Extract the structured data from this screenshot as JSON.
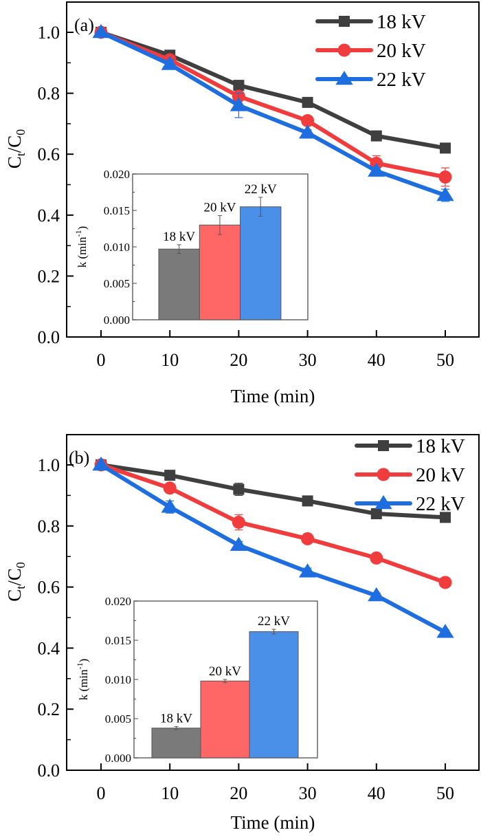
{
  "colors": {
    "s18": "#3f3f3f",
    "s20": "#f03c3c",
    "s22": "#1f6ee0",
    "bar18": "#7a7a7a",
    "bar20": "#ff6666",
    "bar22": "#4a8fe8"
  },
  "chart_data": [
    {
      "panel": "(a)",
      "type": "line",
      "xlabel": "Time (min)",
      "ylabel": "Ct/C0",
      "xlim": [
        -5,
        55
      ],
      "ylim": [
        0.0,
        1.1
      ],
      "xticks": [
        0,
        10,
        20,
        30,
        40,
        50
      ],
      "xtick_labels": [
        "0",
        "10",
        "20",
        "30",
        "40",
        "50"
      ],
      "yticks": [
        0.0,
        0.2,
        0.4,
        0.6,
        0.8,
        1.0
      ],
      "ytick_labels": [
        "0.0",
        "0.2",
        "0.4",
        "0.6",
        "0.8",
        "1.0"
      ],
      "legend_position": "top-right",
      "x": [
        0,
        10,
        20,
        30,
        40,
        50
      ],
      "series": [
        {
          "name": "18  kV",
          "marker": "square",
          "color_key": "s18",
          "values": [
            1.0,
            0.925,
            0.826,
            0.77,
            0.66,
            0.62
          ],
          "errors": [
            0.005,
            0.01,
            0.01,
            0.01,
            0.012,
            0.015
          ]
        },
        {
          "name": "20  kV",
          "marker": "circle",
          "color_key": "s20",
          "values": [
            1.0,
            0.91,
            0.79,
            0.71,
            0.57,
            0.525
          ],
          "errors": [
            0.005,
            0.015,
            0.015,
            0.01,
            0.025,
            0.03
          ]
        },
        {
          "name": "22  kV",
          "marker": "triangle",
          "color_key": "s22",
          "values": [
            1.0,
            0.895,
            0.76,
            0.67,
            0.545,
            0.465
          ],
          "errors": [
            0.005,
            0.015,
            0.04,
            0.01,
            0.01,
            0.02
          ]
        }
      ],
      "inset": {
        "type": "bar",
        "ylabel": "k (min-1)",
        "ylim": [
          0.0,
          0.02
        ],
        "yticks": [
          0.0,
          0.005,
          0.01,
          0.015,
          0.02
        ],
        "ytick_labels": [
          "0.000",
          "0.005",
          "0.010",
          "0.015",
          "0.020"
        ],
        "categories": [
          "18 kV",
          "20 kV",
          "22 kV"
        ],
        "values": [
          0.0097,
          0.013,
          0.0155
        ],
        "errors": [
          0.0006,
          0.0013,
          0.0013
        ],
        "color_keys": [
          "bar18",
          "bar20",
          "bar22"
        ]
      }
    },
    {
      "panel": "(b)",
      "type": "line",
      "xlabel": "Time (min)",
      "ylabel": "Ct/C0",
      "xlim": [
        -5,
        55
      ],
      "ylim": [
        0.0,
        1.1
      ],
      "xticks": [
        0,
        10,
        20,
        30,
        40,
        50
      ],
      "xtick_labels": [
        "0",
        "10",
        "20",
        "30",
        "40",
        "50"
      ],
      "yticks": [
        0.0,
        0.2,
        0.4,
        0.6,
        0.8,
        1.0
      ],
      "ytick_labels": [
        "0.0",
        "0.2",
        "0.4",
        "0.6",
        "0.8",
        "1.0"
      ],
      "legend_position": "top-right",
      "x": [
        0,
        10,
        20,
        30,
        40,
        50
      ],
      "series": [
        {
          "name": "18 kV",
          "marker": "square",
          "color_key": "s18",
          "values": [
            1.0,
            0.966,
            0.92,
            0.882,
            0.84,
            0.828
          ],
          "errors": [
            0.005,
            0.008,
            0.02,
            0.008,
            0.012,
            0.008
          ]
        },
        {
          "name": "20 kV",
          "marker": "circle",
          "color_key": "s20",
          "values": [
            1.0,
            0.924,
            0.812,
            0.758,
            0.695,
            0.615
          ],
          "errors": [
            0.005,
            0.008,
            0.025,
            0.008,
            0.008,
            0.008
          ]
        },
        {
          "name": "22 kV",
          "marker": "triangle",
          "color_key": "s22",
          "values": [
            1.0,
            0.862,
            0.737,
            0.65,
            0.572,
            0.452
          ],
          "errors": [
            0.005,
            0.02,
            0.012,
            0.012,
            0.008,
            0.008
          ]
        }
      ],
      "inset": {
        "type": "bar",
        "ylabel": "k (min-1)",
        "ylim": [
          0.0,
          0.02
        ],
        "yticks": [
          0.0,
          0.005,
          0.01,
          0.015,
          0.02
        ],
        "ytick_labels": [
          "0.000",
          "0.005",
          "0.010",
          "0.015",
          "0.020"
        ],
        "categories": [
          "18 kV",
          "20 kV",
          "22 kV"
        ],
        "values": [
          0.0038,
          0.0098,
          0.0161
        ],
        "errors": [
          0.0002,
          0.0002,
          0.0003
        ],
        "color_keys": [
          "bar18",
          "bar20",
          "bar22"
        ]
      }
    }
  ]
}
